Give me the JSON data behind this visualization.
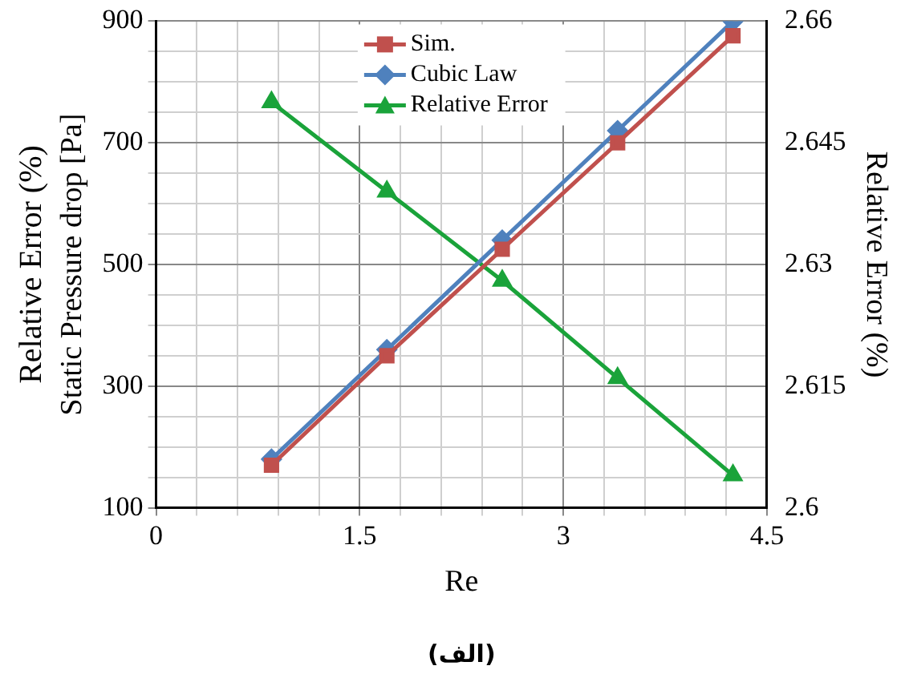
{
  "chart_data": {
    "type": "line",
    "xlabel": "Re",
    "ylabel": "Static Pressure drop [Pa]",
    "y2label": "Relative Error (%)",
    "annotations": [
      "Relative Error (%)",
      "(الف)"
    ],
    "x": [
      0.85,
      1.7,
      2.55,
      3.4,
      4.25
    ],
    "series": [
      {
        "name": "Sim.",
        "color": "#c0504d",
        "marker": "square",
        "values": [
          170,
          350,
          525,
          700,
          876
        ]
      },
      {
        "name": "Cubic Law",
        "color": "#4f81bd",
        "marker": "diamond",
        "values": [
          180,
          360,
          540,
          720,
          900
        ]
      },
      {
        "name": "Relative Error",
        "color": "#1aa33a",
        "marker": "triangle",
        "axis": "y2",
        "values": [
          2.65,
          2.639,
          2.628,
          2.616,
          2.604
        ]
      }
    ],
    "xlim": [
      0,
      4.5
    ],
    "xticks": [
      0,
      {
        "value": 0.3,
        "label": null
      },
      {
        "value": 0.6,
        "label": null
      },
      {
        "value": 0.9,
        "label": null
      },
      {
        "value": 1.2,
        "label": null
      },
      1.5,
      {
        "value": 1.8,
        "label": null
      },
      {
        "value": 2.1,
        "label": null
      },
      {
        "value": 2.4,
        "label": null
      },
      {
        "value": 2.7,
        "label": null
      },
      3,
      {
        "value": 3.3,
        "label": null
      },
      {
        "value": 3.6,
        "label": null
      },
      {
        "value": 3.9,
        "label": null
      },
      {
        "value": 4.2,
        "label": null
      },
      4.5
    ],
    "ylim": [
      100,
      900
    ],
    "yticks": [
      100,
      {
        "value": 150,
        "label": null
      },
      {
        "value": 200,
        "label": null
      },
      {
        "value": 250,
        "label": null
      },
      300,
      {
        "value": 350,
        "label": null
      },
      {
        "value": 400,
        "label": null
      },
      {
        "value": 450,
        "label": null
      },
      500,
      {
        "value": 550,
        "label": null
      },
      {
        "value": 600,
        "label": null
      },
      {
        "value": 650,
        "label": null
      },
      700,
      {
        "value": 750,
        "label": null
      },
      {
        "value": 800,
        "label": null
      },
      {
        "value": 850,
        "label": null
      },
      900
    ],
    "y2lim": [
      2.6,
      2.66
    ],
    "y2ticks": [
      2.6,
      2.615,
      2.63,
      2.645,
      2.66
    ],
    "grid": true,
    "legend": "top",
    "line_style": "solid"
  }
}
